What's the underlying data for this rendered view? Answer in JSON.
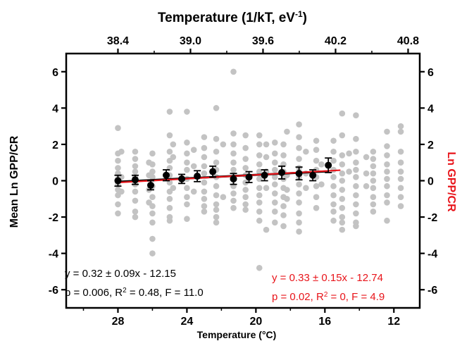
{
  "chart_data": {
    "type": "scatter",
    "title": "",
    "top_axis": {
      "label_prefix": "Temperature (1/kT, eV",
      "label_sup": "-1",
      "label_suffix": ")",
      "ticks": [
        38.4,
        39.0,
        39.6,
        40.2,
        40.8
      ],
      "tick_labels": [
        "38.4",
        "39.0",
        "39.6",
        "40.2",
        "40.8"
      ]
    },
    "bottom_axis": {
      "label": "Temperature (°C)",
      "range": [
        31,
        10.5
      ],
      "ticks": [
        28,
        24,
        20,
        16,
        12
      ],
      "tick_labels": [
        "28",
        "24",
        "20",
        "16",
        "12"
      ]
    },
    "left_axis": {
      "label": "Mean Ln GPP/CR",
      "range": [
        -7,
        7
      ],
      "ticks": [
        -6,
        -4,
        -2,
        0,
        2,
        4,
        6
      ],
      "tick_labels": [
        "-6",
        "-4",
        "-2",
        "0",
        "2",
        "4",
        "6"
      ]
    },
    "right_axis": {
      "label": "Ln GPP/CR",
      "color": "#e8141a",
      "ticks": [
        -6,
        -4,
        -2,
        0,
        2,
        4,
        6
      ],
      "tick_labels": [
        "-6",
        "-4",
        "-2",
        "0",
        "2",
        "4",
        "6"
      ]
    },
    "series": [
      {
        "kind": "scatter",
        "color": "#c3c3c3",
        "points": [
          [
            28,
            2.9
          ],
          [
            28,
            1.5
          ],
          [
            28,
            1.1
          ],
          [
            28,
            0.7
          ],
          [
            28,
            0.4
          ],
          [
            28,
            0.1
          ],
          [
            28,
            -0.2
          ],
          [
            28,
            -0.5
          ],
          [
            28,
            -0.8
          ],
          [
            28,
            -1.3
          ],
          [
            28,
            -1.8
          ],
          [
            27.8,
            1.6
          ],
          [
            27.8,
            0.2
          ],
          [
            27.8,
            -0.6
          ],
          [
            27,
            1.6
          ],
          [
            27,
            1.2
          ],
          [
            27,
            0.8
          ],
          [
            27,
            0.5
          ],
          [
            27,
            0.2
          ],
          [
            27,
            -0.2
          ],
          [
            27,
            -0.6
          ],
          [
            27,
            -1.1
          ],
          [
            27,
            -1.7
          ],
          [
            27,
            -2.0
          ],
          [
            26.2,
            1.0
          ],
          [
            26.2,
            0.3
          ],
          [
            26.2,
            -0.5
          ],
          [
            26.2,
            -1.2
          ],
          [
            26,
            1.5
          ],
          [
            26,
            0.9
          ],
          [
            26,
            0.5
          ],
          [
            26,
            0.2
          ],
          [
            26,
            -0.3
          ],
          [
            26,
            -0.9
          ],
          [
            26,
            -1.4
          ],
          [
            26,
            -1.8
          ],
          [
            26,
            -2.3
          ],
          [
            26,
            -3.2
          ],
          [
            26,
            -4.0
          ],
          [
            25,
            3.8
          ],
          [
            25,
            2.5
          ],
          [
            25,
            1.6
          ],
          [
            25,
            1.1
          ],
          [
            25,
            0.7
          ],
          [
            25,
            0.3
          ],
          [
            25,
            -0.1
          ],
          [
            25,
            -0.6
          ],
          [
            25,
            -1.0
          ],
          [
            25,
            -1.5
          ],
          [
            25,
            -2.2
          ],
          [
            25,
            -2.0
          ],
          [
            24.8,
            1.3
          ],
          [
            24.8,
            -0.4
          ],
          [
            24.8,
            2.0
          ],
          [
            24,
            3.8
          ],
          [
            24,
            2.1
          ],
          [
            24,
            1.5
          ],
          [
            24,
            1.0
          ],
          [
            24,
            0.6
          ],
          [
            24,
            0.1
          ],
          [
            24,
            -0.4
          ],
          [
            24,
            -0.9
          ],
          [
            24,
            -1.3
          ],
          [
            24,
            -2.1
          ],
          [
            23.6,
            1.7
          ],
          [
            23.6,
            0.8
          ],
          [
            23.6,
            -0.6
          ],
          [
            23,
            2.4
          ],
          [
            23,
            1.8
          ],
          [
            23,
            1.3
          ],
          [
            23,
            0.8
          ],
          [
            23,
            0.4
          ],
          [
            23,
            -0.1
          ],
          [
            23,
            -0.6
          ],
          [
            23,
            -1.0
          ],
          [
            23,
            -1.4
          ],
          [
            23,
            -1.7
          ],
          [
            22.3,
            4.0
          ],
          [
            22.3,
            2.3
          ],
          [
            22.3,
            1.6
          ],
          [
            22.3,
            1.0
          ],
          [
            22.3,
            0.6
          ],
          [
            22.3,
            0.2
          ],
          [
            22.3,
            -0.3
          ],
          [
            22.3,
            -0.8
          ],
          [
            22.3,
            -1.3
          ],
          [
            22.3,
            -1.6
          ],
          [
            22.3,
            -2.0
          ],
          [
            22.3,
            -2.3
          ],
          [
            21.9,
            2.0
          ],
          [
            21.9,
            -0.9
          ],
          [
            21.3,
            6.0
          ],
          [
            21.3,
            2.6
          ],
          [
            21.3,
            2.0
          ],
          [
            21.3,
            1.5
          ],
          [
            21.3,
            1.0
          ],
          [
            21.3,
            0.6
          ],
          [
            21.3,
            0.2
          ],
          [
            21.3,
            -0.3
          ],
          [
            21.3,
            -0.7
          ],
          [
            21.3,
            -1.1
          ],
          [
            21.3,
            -1.5
          ],
          [
            20.6,
            2.5
          ],
          [
            20.6,
            1.8
          ],
          [
            20.6,
            1.2
          ],
          [
            20.6,
            0.7
          ],
          [
            20.6,
            0.3
          ],
          [
            20.6,
            -0.1
          ],
          [
            20.6,
            -0.5
          ],
          [
            20.6,
            -0.9
          ],
          [
            20.6,
            -1.3
          ],
          [
            20.6,
            -1.6
          ],
          [
            19.8,
            2.5
          ],
          [
            19.8,
            2.0
          ],
          [
            19.8,
            1.4
          ],
          [
            19.8,
            0.9
          ],
          [
            19.8,
            0.5
          ],
          [
            19.8,
            0.1
          ],
          [
            19.8,
            -0.4
          ],
          [
            19.8,
            -0.8
          ],
          [
            19.8,
            -1.2
          ],
          [
            19.8,
            -1.7
          ],
          [
            19.8,
            -2.2
          ],
          [
            19.8,
            -4.8
          ],
          [
            19.4,
            2.0
          ],
          [
            19.4,
            1.3
          ],
          [
            19.4,
            0.5
          ],
          [
            19.4,
            -0.4
          ],
          [
            19.4,
            -2.7
          ],
          [
            18.9,
            2.1
          ],
          [
            18.9,
            1.5
          ],
          [
            18.9,
            1.0
          ],
          [
            18.9,
            0.6
          ],
          [
            18.9,
            0.2
          ],
          [
            18.9,
            -0.2
          ],
          [
            18.9,
            -0.7
          ],
          [
            18.9,
            -1.2
          ],
          [
            18.9,
            -1.7
          ],
          [
            18.9,
            -2.3
          ],
          [
            18.4,
            2.0
          ],
          [
            18.4,
            1.4
          ],
          [
            18.4,
            0.9
          ],
          [
            18.4,
            0.5
          ],
          [
            18.4,
            0.1
          ],
          [
            18.4,
            -0.4
          ],
          [
            18.4,
            -0.9
          ],
          [
            18.4,
            -1.4
          ],
          [
            18.4,
            -1.9
          ],
          [
            18.4,
            -2.5
          ],
          [
            18.2,
            2.7
          ],
          [
            18.2,
            0.3
          ],
          [
            18.2,
            -0.5
          ],
          [
            18.2,
            -1.0
          ],
          [
            17.5,
            3.1
          ],
          [
            17.5,
            2.4
          ],
          [
            17.5,
            1.8
          ],
          [
            17.5,
            1.2
          ],
          [
            17.5,
            0.7
          ],
          [
            17.5,
            0.2
          ],
          [
            17.5,
            -0.2
          ],
          [
            17.5,
            -0.7
          ],
          [
            17.5,
            -1.2
          ],
          [
            17.5,
            -1.8
          ],
          [
            17.5,
            -2.3
          ],
          [
            17.5,
            -2.8
          ],
          [
            17.1,
            1.6
          ],
          [
            17.1,
            0.4
          ],
          [
            17.1,
            -0.4
          ],
          [
            16.5,
            2.2
          ],
          [
            16.5,
            1.7
          ],
          [
            16.5,
            1.1
          ],
          [
            16.5,
            0.6
          ],
          [
            16.5,
            0.2
          ],
          [
            16.5,
            -0.3
          ],
          [
            16.5,
            -0.9
          ],
          [
            16.5,
            -1.5
          ],
          [
            16.2,
            0.9
          ],
          [
            16.2,
            -0.2
          ],
          [
            15.5,
            2.2
          ],
          [
            15.5,
            1.6
          ],
          [
            15.5,
            1.1
          ],
          [
            15.5,
            0.6
          ],
          [
            15.5,
            0.2
          ],
          [
            15.5,
            -0.3
          ],
          [
            15.5,
            -0.8
          ],
          [
            15.5,
            -1.3
          ],
          [
            15.5,
            -1.7
          ],
          [
            15.5,
            -2.2
          ],
          [
            15.0,
            3.7
          ],
          [
            15.0,
            2.5
          ],
          [
            15.0,
            1.4
          ],
          [
            15.0,
            0.9
          ],
          [
            15.0,
            0.4
          ],
          [
            15.0,
            0.0
          ],
          [
            15.0,
            -0.5
          ],
          [
            15.0,
            -1.0
          ],
          [
            15.0,
            -1.5
          ],
          [
            15.0,
            -2.0
          ],
          [
            15.0,
            -2.3
          ],
          [
            15.0,
            -2.7
          ],
          [
            14.6,
            1.5
          ],
          [
            14.6,
            0.5
          ],
          [
            14.2,
            3.6
          ],
          [
            14.2,
            2.3
          ],
          [
            14.2,
            1.6
          ],
          [
            14.2,
            1.0
          ],
          [
            14.2,
            0.6
          ],
          [
            14.2,
            0.2
          ],
          [
            14.2,
            -0.3
          ],
          [
            14.2,
            -0.8
          ],
          [
            14.2,
            -1.3
          ],
          [
            14.2,
            -1.8
          ],
          [
            14.2,
            -2.3
          ],
          [
            14.2,
            -2.5
          ],
          [
            13.6,
            1.3
          ],
          [
            13.6,
            0.4
          ],
          [
            13.6,
            -0.3
          ],
          [
            13.2,
            1.6
          ],
          [
            13.2,
            1.2
          ],
          [
            13.2,
            0.8
          ],
          [
            13.2,
            0.4
          ],
          [
            13.2,
            0.0
          ],
          [
            13.2,
            -0.4
          ],
          [
            13.2,
            -0.9
          ],
          [
            13.2,
            -1.3
          ],
          [
            13.2,
            -1.7
          ],
          [
            12.4,
            2.7
          ],
          [
            12.4,
            1.9
          ],
          [
            12.4,
            1.4
          ],
          [
            12.4,
            0.9
          ],
          [
            12.4,
            0.5
          ],
          [
            12.4,
            0.1
          ],
          [
            12.4,
            -0.3
          ],
          [
            12.4,
            -0.8
          ],
          [
            12.4,
            -1.2
          ],
          [
            12.4,
            -2.2
          ],
          [
            11.6,
            3.0
          ],
          [
            11.6,
            2.7
          ],
          [
            11.6,
            1.6
          ],
          [
            11.6,
            1.0
          ],
          [
            11.6,
            0.5
          ],
          [
            11.6,
            0.1
          ],
          [
            11.6,
            -0.4
          ],
          [
            11.6,
            -0.9
          ],
          [
            11.6,
            -1.4
          ]
        ]
      },
      {
        "kind": "mean_with_error",
        "color": "#000000",
        "points": [
          [
            28.0,
            0.0,
            0.3
          ],
          [
            27.0,
            0.05,
            0.25
          ],
          [
            26.1,
            -0.25,
            0.25
          ],
          [
            25.2,
            0.3,
            0.3
          ],
          [
            24.3,
            0.1,
            0.25
          ],
          [
            23.4,
            0.25,
            0.3
          ],
          [
            22.5,
            0.5,
            0.3
          ],
          [
            21.3,
            0.1,
            0.3
          ],
          [
            20.4,
            0.2,
            0.3
          ],
          [
            19.5,
            0.3,
            0.3
          ],
          [
            18.5,
            0.45,
            0.35
          ],
          [
            17.5,
            0.4,
            0.35
          ],
          [
            16.7,
            0.3,
            0.3
          ],
          [
            15.8,
            0.85,
            0.4
          ]
        ]
      }
    ],
    "fits": [
      {
        "name": "",
        "color": "#000000",
        "x": [
          28.0,
          15.8
        ],
        "y": [
          -0.06,
          0.52
        ]
      },
      {
        "name": "",
        "color": "#e8141a",
        "x": [
          28.0,
          15.1
        ],
        "y": [
          -0.1,
          0.58
        ]
      }
    ],
    "annotations": {
      "black_line1": "y = 0.32 ± 0.09x - 12.15",
      "black_line2_prefix": "p = 0.006,  R",
      "black_line2_sup": "2",
      "black_line2_suffix": " = 0.48, F = 11.0",
      "red_line1": "y = 0.33 ± 0.15x - 12.74",
      "red_line2_prefix": "p = 0.02,  R",
      "red_line2_sup": "2",
      "red_line2_suffix": " = 0, F = 4.9"
    },
    "grid": false,
    "legend": "none"
  }
}
